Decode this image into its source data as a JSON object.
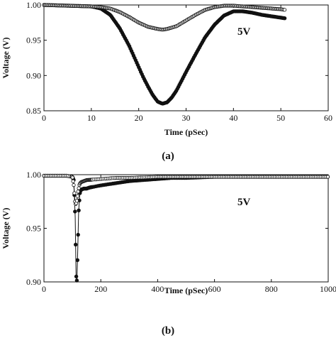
{
  "chart_data": [
    {
      "type": "scatter",
      "caption": "(a)",
      "annotation": "5V",
      "xlabel": "Time (pSec)",
      "ylabel": "Voltage (V)",
      "xlim": [
        0,
        60
      ],
      "ylim": [
        0.85,
        1.0
      ],
      "xticks": [
        0,
        10,
        20,
        30,
        40,
        50,
        60
      ],
      "yticks": [
        0.85,
        0.9,
        0.95,
        1.0
      ],
      "ytick_labels": [
        "0.85",
        "0.90",
        "0.95",
        "1.00"
      ],
      "series": [
        {
          "marker": "filled-circle",
          "x": [
            0,
            5,
            10,
            12,
            14,
            16,
            18,
            20,
            21,
            22,
            23,
            24,
            25,
            26,
            27,
            28,
            29,
            30,
            32,
            34,
            36,
            38,
            40,
            42,
            44,
            46,
            48,
            50,
            51
          ],
          "y": [
            1.0,
            0.999,
            0.998,
            0.995,
            0.986,
            0.967,
            0.942,
            0.912,
            0.897,
            0.884,
            0.872,
            0.863,
            0.86,
            0.862,
            0.869,
            0.879,
            0.892,
            0.905,
            0.93,
            0.954,
            0.972,
            0.985,
            0.991,
            0.991,
            0.989,
            0.986,
            0.984,
            0.982,
            0.981
          ]
        },
        {
          "marker": "open-circle",
          "x": [
            0,
            5,
            10,
            12,
            14,
            16,
            18,
            20,
            22,
            24,
            25,
            26,
            28,
            30,
            32,
            34,
            36,
            38,
            40,
            42,
            44,
            46,
            48,
            50,
            51
          ],
          "y": [
            1.0,
            0.999,
            0.998,
            0.997,
            0.995,
            0.99,
            0.983,
            0.975,
            0.969,
            0.966,
            0.965,
            0.966,
            0.97,
            0.978,
            0.986,
            0.993,
            0.997,
            0.999,
            0.999,
            0.998,
            0.997,
            0.996,
            0.995,
            0.994,
            0.993
          ]
        }
      ]
    },
    {
      "type": "scatter",
      "caption": "(b)",
      "annotation": "5V",
      "xlabel": "Time (pSec)",
      "ylabel": "Voltage (V)",
      "xlim": [
        0,
        1000
      ],
      "ylim": [
        0.9,
        1.0
      ],
      "xticks": [
        0,
        200,
        400,
        600,
        800,
        1000
      ],
      "yticks": [
        0.9,
        0.95,
        1.0
      ],
      "ytick_labels": [
        "0.90",
        "0.95",
        "1.00"
      ],
      "series": [
        {
          "marker": "filled-circle",
          "x": [
            0,
            40,
            80,
            100,
            105,
            110,
            113,
            116,
            119,
            122,
            126,
            130,
            140,
            150,
            160,
            180,
            200,
            250,
            300,
            350,
            400,
            450,
            500,
            600,
            700,
            800,
            900,
            1000
          ],
          "y": [
            0.999,
            0.999,
            0.999,
            0.998,
            0.995,
            0.96,
            0.906,
            0.901,
            0.93,
            0.965,
            0.982,
            0.986,
            0.987,
            0.987,
            0.988,
            0.989,
            0.99,
            0.992,
            0.994,
            0.995,
            0.996,
            0.997,
            0.997,
            0.998,
            0.998,
            0.998,
            0.998,
            0.998
          ]
        },
        {
          "marker": "open-circle",
          "x": [
            0,
            40,
            80,
            100,
            105,
            110,
            115,
            120,
            125,
            130,
            140,
            150,
            200,
            250,
            300,
            400,
            500,
            600,
            700,
            800,
            900,
            1000
          ],
          "y": [
            0.999,
            0.999,
            0.999,
            0.998,
            0.99,
            0.972,
            0.974,
            0.984,
            0.991,
            0.993,
            0.994,
            0.995,
            0.996,
            0.997,
            0.997,
            0.998,
            0.998,
            0.998,
            0.998,
            0.998,
            0.998,
            0.998
          ]
        }
      ]
    }
  ]
}
